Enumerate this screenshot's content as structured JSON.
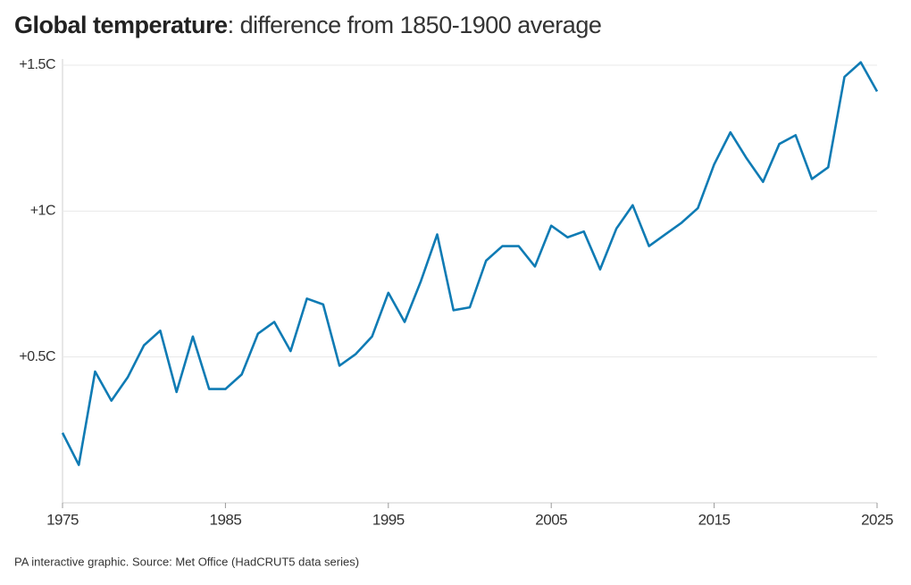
{
  "chart_data": {
    "type": "line",
    "title_bold": "Global temperature",
    "title": ": difference from 1850-1900 average",
    "source": "PA interactive graphic. Source: Met Office (HadCRUT5 data series)",
    "x": [
      1975,
      1976,
      1977,
      1978,
      1979,
      1980,
      1981,
      1982,
      1983,
      1984,
      1985,
      1986,
      1987,
      1988,
      1989,
      1990,
      1991,
      1992,
      1993,
      1994,
      1995,
      1996,
      1997,
      1998,
      1999,
      2000,
      2001,
      2002,
      2003,
      2004,
      2005,
      2006,
      2007,
      2008,
      2009,
      2010,
      2011,
      2012,
      2013,
      2014,
      2015,
      2016,
      2017,
      2018,
      2019,
      2020,
      2021,
      2022,
      2023,
      2024,
      2025
    ],
    "series": [
      {
        "color": "#0f7bb4",
        "values": [
          0.24,
          0.13,
          0.45,
          0.35,
          0.43,
          0.54,
          0.59,
          0.38,
          0.57,
          0.39,
          0.39,
          0.44,
          0.58,
          0.62,
          0.52,
          0.7,
          0.68,
          0.47,
          0.51,
          0.57,
          0.72,
          0.62,
          0.76,
          0.92,
          0.66,
          0.67,
          0.83,
          0.88,
          0.88,
          0.81,
          0.95,
          0.91,
          0.93,
          0.8,
          0.94,
          1.02,
          0.88,
          0.92,
          0.96,
          1.01,
          1.16,
          1.27,
          1.18,
          1.1,
          1.23,
          1.26,
          1.11,
          1.15,
          1.46,
          1.51,
          1.41
        ]
      }
    ],
    "xlim": [
      1975,
      2025
    ],
    "xticks": [
      1975,
      1985,
      1995,
      2005,
      2015,
      2025
    ],
    "ylim": [
      0,
      1.5
    ],
    "yticks": [
      {
        "value": 0.5,
        "label": "+0.5C"
      },
      {
        "value": 1,
        "label": "+1C"
      },
      {
        "value": 1.5,
        "label": "+1.5C"
      }
    ],
    "grid": true
  }
}
